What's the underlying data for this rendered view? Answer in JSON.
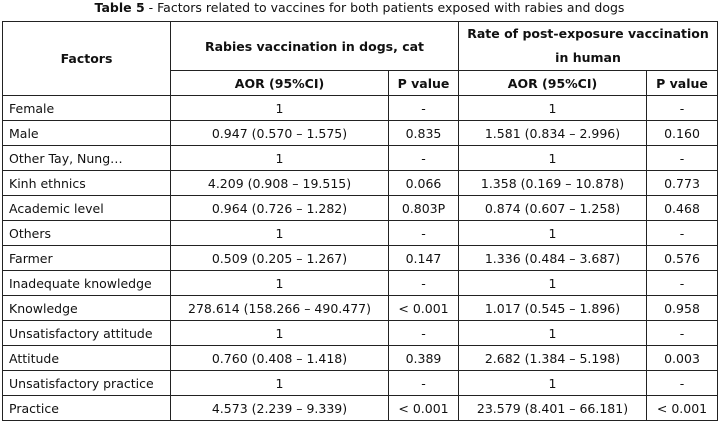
{
  "caption": {
    "label": "Table 5",
    "text": "- Factors related to vaccines for both patients exposed with rabies and dogs"
  },
  "table": {
    "header": {
      "factors": "Factors",
      "group1": "Rabies vaccination in dogs, cat",
      "group2": "Rate of post-exposure vaccination in human",
      "subheaders": [
        "AOR (95%CI)",
        "P value",
        "AOR (95%CI)",
        "P value"
      ]
    },
    "rows": [
      [
        "Female",
        "1",
        "-",
        "1",
        "-"
      ],
      [
        "Male",
        "0.947 (0.570 – 1.575)",
        "0.835",
        "1.581 (0.834 – 2.996)",
        "0.160"
      ],
      [
        "Other Tay, Nung…",
        "1",
        "-",
        "1",
        "-"
      ],
      [
        "Kinh ethnics",
        "4.209 (0.908 – 19.515)",
        "0.066",
        "1.358 (0.169 – 10.878)",
        "0.773"
      ],
      [
        "Academic level",
        "0.964 (0.726 – 1.282)",
        "0.803P",
        "0.874 (0.607 – 1.258)",
        "0.468"
      ],
      [
        "Others",
        "1",
        "-",
        "1",
        "-"
      ],
      [
        "Farmer",
        "0.509 (0.205 – 1.267)",
        "0.147",
        "1.336 (0.484 – 3.687)",
        "0.576"
      ],
      [
        "Inadequate knowledge",
        "1",
        "-",
        "1",
        "-"
      ],
      [
        "Knowledge",
        "278.614 (158.266 – 490.477)",
        "< 0.001",
        "1.017 (0.545 – 1.896)",
        "0.958"
      ],
      [
        "Unsatisfactory attitude",
        "1",
        "-",
        "1",
        "-"
      ],
      [
        "Attitude",
        "0.760 (0.408 – 1.418)",
        "0.389",
        "2.682 (1.384 – 5.198)",
        "0.003"
      ],
      [
        "Unsatisfactory practice",
        "1",
        "-",
        "1",
        "-"
      ],
      [
        "Practice",
        "4.573 (2.239 – 9.339)",
        "< 0.001",
        "23.579 (8.401 – 66.181)",
        "< 0.001"
      ]
    ]
  }
}
